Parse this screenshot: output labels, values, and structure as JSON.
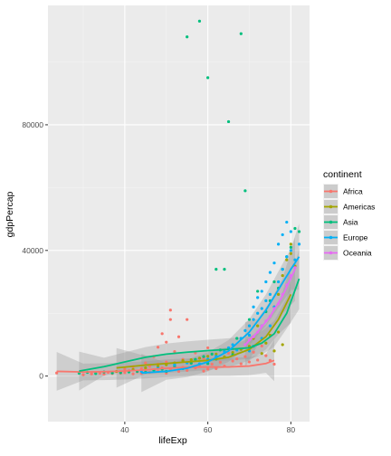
{
  "chart_data": {
    "type": "scatter",
    "xlabel": "lifeExp",
    "ylabel": "gdpPercap",
    "xlim": [
      21.5,
      84.5
    ],
    "ylim": [
      -14500,
      118000
    ],
    "x_ticks": [
      40,
      60,
      80
    ],
    "x_tick_labels": [
      "40",
      "60",
      "80"
    ],
    "y_ticks": [
      0,
      40000,
      80000
    ],
    "y_tick_labels": [
      "0",
      "40000",
      "80000"
    ],
    "panel_background": "#ebebeb",
    "grid": true,
    "legend": {
      "title": "continent",
      "position": "right"
    },
    "series": [
      {
        "name": "Africa",
        "color": "#f8766d",
        "points": [
          [
            23.6,
            1000
          ],
          [
            30,
            400
          ],
          [
            32,
            700
          ],
          [
            34,
            900
          ],
          [
            35,
            600
          ],
          [
            36,
            1200
          ],
          [
            37,
            800
          ],
          [
            38,
            1400
          ],
          [
            39,
            900
          ],
          [
            40,
            1100
          ],
          [
            40,
            2200
          ],
          [
            41,
            1700
          ],
          [
            42,
            700
          ],
          [
            42,
            3000
          ],
          [
            43,
            1300
          ],
          [
            44,
            900
          ],
          [
            44,
            2400
          ],
          [
            45,
            1600
          ],
          [
            45,
            4200
          ],
          [
            46,
            1200
          ],
          [
            46,
            3100
          ],
          [
            47,
            2000
          ],
          [
            47,
            6200
          ],
          [
            48,
            1500
          ],
          [
            48,
            3800
          ],
          [
            48,
            9200
          ],
          [
            49,
            2600
          ],
          [
            49,
            13500
          ],
          [
            50,
            900
          ],
          [
            50,
            4500
          ],
          [
            50,
            10800
          ],
          [
            51,
            2200
          ],
          [
            51,
            21000
          ],
          [
            51,
            18000
          ],
          [
            52,
            3600
          ],
          [
            52,
            7800
          ],
          [
            53,
            1500
          ],
          [
            53,
            12500
          ],
          [
            54,
            2800
          ],
          [
            54,
            5300
          ],
          [
            55,
            1800
          ],
          [
            55,
            18000
          ],
          [
            56,
            4000
          ],
          [
            57,
            2600
          ],
          [
            57,
            7400
          ],
          [
            58,
            3400
          ],
          [
            59,
            1600
          ],
          [
            59,
            5600
          ],
          [
            60,
            2200
          ],
          [
            60,
            9000
          ],
          [
            61,
            3800
          ],
          [
            62,
            2400
          ],
          [
            62,
            6300
          ],
          [
            63,
            4400
          ],
          [
            64,
            3200
          ],
          [
            65,
            7300
          ],
          [
            66,
            4800
          ],
          [
            67,
            5500
          ],
          [
            68,
            3900
          ],
          [
            69,
            6200
          ],
          [
            70,
            4500
          ],
          [
            71,
            7600
          ],
          [
            72,
            5100
          ],
          [
            73,
            9600
          ],
          [
            74,
            6500
          ],
          [
            75,
            5000
          ],
          [
            76,
            3800
          ]
        ],
        "smooth": [
          [
            23.6,
            1500
          ],
          [
            30,
            1300
          ],
          [
            35,
            1400
          ],
          [
            40,
            1600
          ],
          [
            45,
            2000
          ],
          [
            50,
            2500
          ],
          [
            55,
            2800
          ],
          [
            60,
            2900
          ],
          [
            65,
            2900
          ],
          [
            70,
            3200
          ],
          [
            74,
            4000
          ],
          [
            76,
            5000
          ]
        ]
      },
      {
        "name": "Americas",
        "color": "#a3a500",
        "points": [
          [
            38,
            1500
          ],
          [
            42,
            2100
          ],
          [
            45,
            2600
          ],
          [
            48,
            3100
          ],
          [
            50,
            3600
          ],
          [
            52,
            4200
          ],
          [
            54,
            4900
          ],
          [
            56,
            5200
          ],
          [
            58,
            5700
          ],
          [
            60,
            6300
          ],
          [
            62,
            7000
          ],
          [
            64,
            6100
          ],
          [
            66,
            7500
          ],
          [
            68,
            8500
          ],
          [
            70,
            9500
          ],
          [
            71,
            12000
          ],
          [
            72,
            16000
          ],
          [
            73,
            7200
          ],
          [
            74,
            10500
          ],
          [
            75,
            13000
          ],
          [
            76,
            22000
          ],
          [
            77,
            26000
          ],
          [
            78,
            32000
          ],
          [
            79,
            37000
          ],
          [
            80,
            39000
          ],
          [
            80,
            42000
          ],
          [
            81,
            35000
          ],
          [
            78,
            10000
          ],
          [
            77,
            14000
          ],
          [
            76,
            8000
          ]
        ],
        "smooth": [
          [
            38,
            2600
          ],
          [
            45,
            3500
          ],
          [
            50,
            4000
          ],
          [
            55,
            4500
          ],
          [
            60,
            5000
          ],
          [
            65,
            6000
          ],
          [
            70,
            8500
          ],
          [
            74,
            12500
          ],
          [
            77,
            18000
          ],
          [
            80,
            26000
          ]
        ]
      },
      {
        "name": "Asia",
        "color": "#00bf7d",
        "points": [
          [
            29,
            900
          ],
          [
            31,
            1200
          ],
          [
            33,
            800
          ],
          [
            35,
            1300
          ],
          [
            37,
            1000
          ],
          [
            39,
            1100
          ],
          [
            41,
            1300
          ],
          [
            43,
            1500
          ],
          [
            45,
            1200
          ],
          [
            47,
            1900
          ],
          [
            49,
            2200
          ],
          [
            50,
            1500
          ],
          [
            52,
            3000
          ],
          [
            54,
            2400
          ],
          [
            55,
            108000
          ],
          [
            56,
            4100
          ],
          [
            57,
            5300
          ],
          [
            58,
            113000
          ],
          [
            59,
            6200
          ],
          [
            60,
            95000
          ],
          [
            60,
            4000
          ],
          [
            61,
            7000
          ],
          [
            62,
            34000
          ],
          [
            62,
            5400
          ],
          [
            63,
            8300
          ],
          [
            64,
            34000
          ],
          [
            65,
            81000
          ],
          [
            66,
            6800
          ],
          [
            67,
            12000
          ],
          [
            68,
            109000
          ],
          [
            69,
            59000
          ],
          [
            70,
            18000
          ],
          [
            71,
            9500
          ],
          [
            72,
            27000
          ],
          [
            73,
            16000
          ],
          [
            74,
            20500
          ],
          [
            75,
            24000
          ],
          [
            76,
            30000
          ],
          [
            77,
            28000
          ],
          [
            78,
            34000
          ],
          [
            79,
            38000
          ],
          [
            80,
            41000
          ],
          [
            81,
            47000
          ],
          [
            82,
            46000
          ]
        ],
        "smooth": [
          [
            29,
            1600
          ],
          [
            35,
            3000
          ],
          [
            40,
            4500
          ],
          [
            45,
            6000
          ],
          [
            50,
            7000
          ],
          [
            55,
            7600
          ],
          [
            60,
            8100
          ],
          [
            65,
            8500
          ],
          [
            70,
            9000
          ],
          [
            73,
            10500
          ],
          [
            76,
            13500
          ],
          [
            79,
            20000
          ],
          [
            82,
            31000
          ]
        ]
      },
      {
        "name": "Europe",
        "color": "#00b0f6",
        "points": [
          [
            44,
            1500
          ],
          [
            48,
            2500
          ],
          [
            52,
            3600
          ],
          [
            55,
            4200
          ],
          [
            58,
            3900
          ],
          [
            60,
            5400
          ],
          [
            62,
            6300
          ],
          [
            64,
            7800
          ],
          [
            65,
            9000
          ],
          [
            66,
            10000
          ],
          [
            67,
            8300
          ],
          [
            68,
            12000
          ],
          [
            69,
            14500
          ],
          [
            70,
            13000
          ],
          [
            70,
            16000
          ],
          [
            71,
            18000
          ],
          [
            71,
            22000
          ],
          [
            72,
            20000
          ],
          [
            72,
            25000
          ],
          [
            73,
            21500
          ],
          [
            73,
            27000
          ],
          [
            74,
            24000
          ],
          [
            74,
            30000
          ],
          [
            75,
            26000
          ],
          [
            75,
            33000
          ],
          [
            76,
            22000
          ],
          [
            76,
            36000
          ],
          [
            77,
            30000
          ],
          [
            77,
            42000
          ],
          [
            78,
            34000
          ],
          [
            78,
            45000
          ],
          [
            79,
            38000
          ],
          [
            79,
            49000
          ],
          [
            80,
            40000
          ],
          [
            80,
            46000
          ],
          [
            81,
            37000
          ],
          [
            82,
            42000
          ],
          [
            75,
            16000
          ],
          [
            73,
            12000
          ],
          [
            71,
            9500
          ],
          [
            70,
            8000
          ]
        ],
        "smooth": [
          [
            44,
            1000
          ],
          [
            50,
            1500
          ],
          [
            55,
            2500
          ],
          [
            60,
            4500
          ],
          [
            65,
            8000
          ],
          [
            70,
            14000
          ],
          [
            74,
            21000
          ],
          [
            77,
            27500
          ],
          [
            80,
            34000
          ],
          [
            82,
            38000
          ]
        ]
      },
      {
        "name": "Oceania",
        "color": "#e76bf3",
        "points": [
          [
            69,
            10000
          ],
          [
            70,
            11500
          ],
          [
            71,
            12500
          ],
          [
            72,
            14000
          ],
          [
            73,
            16000
          ],
          [
            74,
            17500
          ],
          [
            75,
            19000
          ],
          [
            76,
            21500
          ],
          [
            77,
            23000
          ],
          [
            78,
            26000
          ],
          [
            79,
            29000
          ],
          [
            80,
            32000
          ],
          [
            81,
            34500
          ]
        ],
        "smooth": [
          [
            69,
            10000
          ],
          [
            72,
            14000
          ],
          [
            75,
            19000
          ],
          [
            78,
            25500
          ],
          [
            81,
            34000
          ]
        ]
      }
    ]
  }
}
